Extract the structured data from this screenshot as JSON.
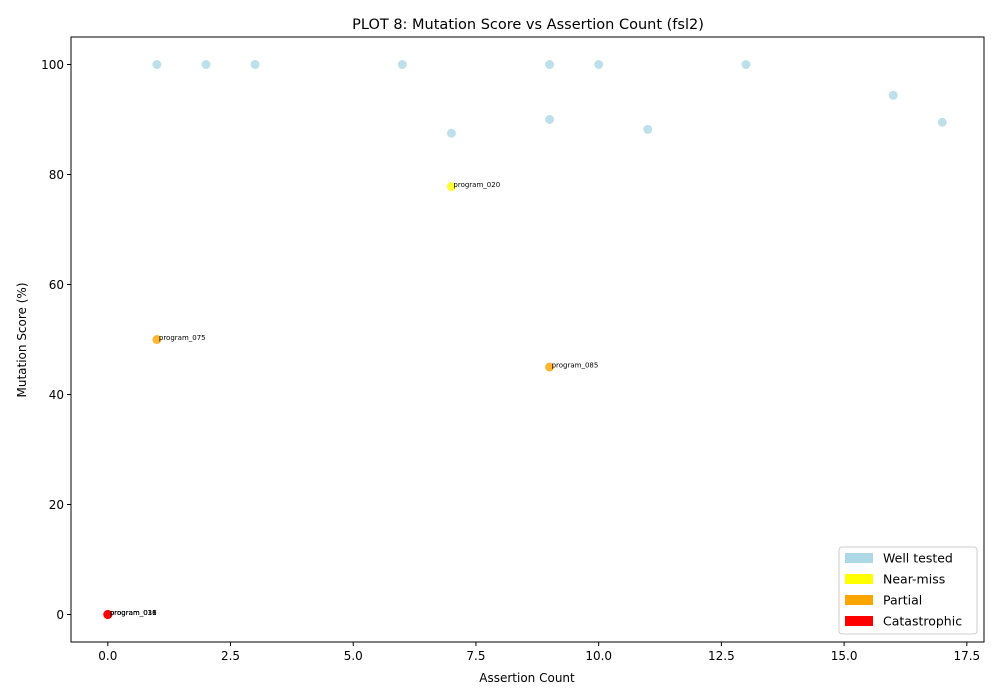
{
  "chart_data": {
    "type": "scatter",
    "title": "PLOT 8: Mutation Score vs Assertion Count (fsl2)",
    "xlabel": "Assertion Count",
    "ylabel": "Mutation Score (%)",
    "xlim": [
      -0.75,
      17.85
    ],
    "ylim": [
      -5,
      105
    ],
    "xticks": [
      0.0,
      2.5,
      5.0,
      7.5,
      10.0,
      12.5,
      15.0,
      17.5
    ],
    "xtick_labels": [
      "0.0",
      "2.5",
      "5.0",
      "7.5",
      "10.0",
      "12.5",
      "15.0",
      "17.5"
    ],
    "yticks": [
      0,
      20,
      40,
      60,
      80,
      100
    ],
    "ytick_labels": [
      "0",
      "20",
      "40",
      "60",
      "80",
      "100"
    ],
    "grid": false,
    "legend_position": "bottom-right",
    "categories": [
      {
        "key": "well",
        "label": "Well tested",
        "color": "#add8e6"
      },
      {
        "key": "near",
        "label": "Near-miss",
        "color": "#ffff00"
      },
      {
        "key": "partial",
        "label": "Partial",
        "color": "#ffa500"
      },
      {
        "key": "cat",
        "label": "Catastrophic",
        "color": "#ff0000"
      }
    ],
    "points": [
      {
        "x": 1,
        "y": 100,
        "cat": "well",
        "label": ""
      },
      {
        "x": 2,
        "y": 100,
        "cat": "well",
        "label": ""
      },
      {
        "x": 3,
        "y": 100,
        "cat": "well",
        "label": ""
      },
      {
        "x": 6,
        "y": 100,
        "cat": "well",
        "label": ""
      },
      {
        "x": 9,
        "y": 100,
        "cat": "well",
        "label": ""
      },
      {
        "x": 10,
        "y": 100,
        "cat": "well",
        "label": ""
      },
      {
        "x": 13,
        "y": 100,
        "cat": "well",
        "label": ""
      },
      {
        "x": 16,
        "y": 94.4,
        "cat": "well",
        "label": ""
      },
      {
        "x": 17,
        "y": 89.5,
        "cat": "well",
        "label": ""
      },
      {
        "x": 9,
        "y": 90,
        "cat": "well",
        "label": ""
      },
      {
        "x": 11,
        "y": 88.2,
        "cat": "well",
        "label": ""
      },
      {
        "x": 7,
        "y": 87.5,
        "cat": "well",
        "label": ""
      },
      {
        "x": 7,
        "y": 77.8,
        "cat": "near",
        "label": "program_020"
      },
      {
        "x": 1,
        "y": 50,
        "cat": "partial",
        "label": "program_075"
      },
      {
        "x": 9,
        "y": 45,
        "cat": "partial",
        "label": "program_085"
      },
      {
        "x": 0,
        "y": 0,
        "cat": "cat",
        "label": "program_011"
      },
      {
        "x": 0,
        "y": 0,
        "cat": "cat",
        "label": "program_016"
      },
      {
        "x": 0,
        "y": 0,
        "cat": "cat",
        "label": "program_038"
      }
    ]
  }
}
